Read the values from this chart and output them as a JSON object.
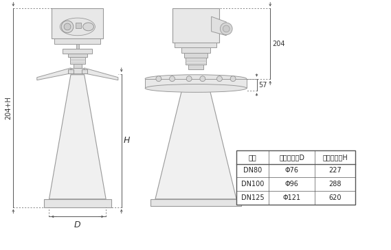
{
  "bg_color": "#ffffff",
  "lc": "#aaaaaa",
  "dc": "#555555",
  "tc": "#333333",
  "table_headers": [
    "法兰",
    "喇叭口直径D",
    "喇叭口高度H"
  ],
  "table_rows": [
    [
      "DN80",
      "Φ76",
      "227"
    ],
    [
      "DN100",
      "Φ96",
      "288"
    ],
    [
      "DN125",
      "Φ121",
      "620"
    ]
  ],
  "dim_204": "204",
  "dim_57": "57",
  "dim_H": "H",
  "dim_204H": "204+H",
  "dim_D": "D",
  "table_fontsize": 7,
  "dim_fontsize": 7
}
